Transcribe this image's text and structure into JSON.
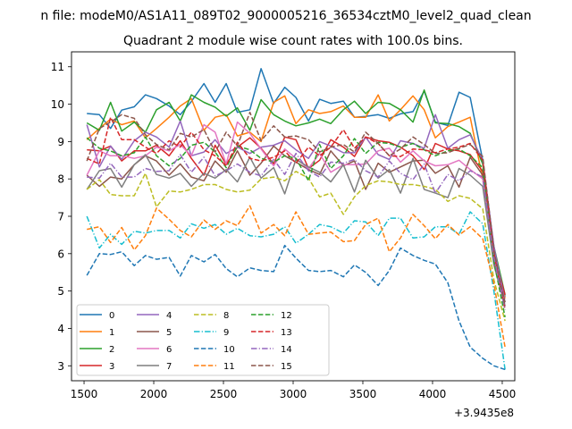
{
  "figure": {
    "suptitle": "n file: modeM0/AS1A11_089T02_9000005216_36534cztM0_level2_quad_clean",
    "title": "Quadrant 2 module wise count rates with 100.0s bins.",
    "offset_label": "+3.9435e8"
  },
  "chart_data": {
    "type": "line",
    "title": "Quadrant 2 module wise count rates with 100.0s bins.",
    "x_offset": "+3.9435e8",
    "xlim": [
      1410,
      4590
    ],
    "ylim": [
      2.6,
      11.4
    ],
    "x_ticks": [
      1500,
      2000,
      2500,
      3000,
      3500,
      4000,
      4500
    ],
    "y_ticks": [
      3,
      4,
      5,
      6,
      7,
      8,
      9,
      10,
      11
    ],
    "grid": false,
    "legend_position": "lower-left",
    "legend_columns": 4,
    "x": [
      1520,
      1610,
      1690,
      1770,
      1860,
      1940,
      2020,
      2110,
      2190,
      2270,
      2360,
      2440,
      2520,
      2600,
      2690,
      2770,
      2860,
      2940,
      3020,
      3110,
      3190,
      3270,
      3360,
      3440,
      3520,
      3610,
      3690,
      3770,
      3860,
      3940,
      4020,
      4110,
      4190,
      4270,
      4360,
      4440,
      4520
    ],
    "series": [
      {
        "name": "0",
        "color": "#1f77b4",
        "dash": "solid",
        "values": [
          9.75,
          9.72,
          9.35,
          9.84,
          9.93,
          10.25,
          10.15,
          9.95,
          9.72,
          10.07,
          10.55,
          10.05,
          10.55,
          9.78,
          9.85,
          10.95,
          10.02,
          10.45,
          10.18,
          9.55,
          10.13,
          10.02,
          10.08,
          9.65,
          9.67,
          9.72,
          9.62,
          9.74,
          9.8,
          10.35,
          9.52,
          9.43,
          10.32,
          10.18,
          8.5,
          6.1,
          4.85
        ]
      },
      {
        "name": "1",
        "color": "#ff7f0e",
        "dash": "solid",
        "values": [
          9.05,
          9.35,
          9.6,
          9.45,
          9.55,
          9.1,
          9.35,
          9.65,
          9.95,
          10.15,
          9.3,
          9.65,
          9.72,
          9.15,
          9.25,
          9.0,
          10.05,
          10.22,
          9.48,
          9.85,
          9.75,
          9.8,
          9.95,
          9.65,
          9.65,
          10.25,
          9.55,
          9.85,
          10.22,
          9.85,
          9.1,
          9.4,
          9.52,
          9.65,
          8.0,
          6.0,
          4.8
        ]
      },
      {
        "name": "2",
        "color": "#2ca02c",
        "dash": "solid",
        "values": [
          9.5,
          9.3,
          10.05,
          9.28,
          9.52,
          9.25,
          9.85,
          10.05,
          9.55,
          10.25,
          10.05,
          9.92,
          9.68,
          9.9,
          9.3,
          10.12,
          9.72,
          9.55,
          9.42,
          9.5,
          9.6,
          9.48,
          9.85,
          10.08,
          9.75,
          10.05,
          10.02,
          9.85,
          9.52,
          10.38,
          9.5,
          9.48,
          9.4,
          9.22,
          8.4,
          6.2,
          4.9
        ]
      },
      {
        "name": "3",
        "color": "#d62728",
        "dash": "solid",
        "values": [
          8.78,
          8.75,
          8.88,
          8.48,
          8.75,
          8.75,
          8.9,
          8.62,
          9.02,
          8.55,
          8.1,
          8.9,
          8.38,
          8.85,
          9.1,
          8.82,
          8.4,
          9.12,
          9.05,
          8.28,
          8.5,
          9.05,
          8.85,
          8.6,
          9.12,
          9.02,
          8.98,
          8.85,
          8.62,
          8.25,
          8.95,
          8.8,
          8.75,
          8.65,
          8.2,
          6.0,
          4.9
        ]
      },
      {
        "name": "4",
        "color": "#9467bd",
        "dash": "solid",
        "values": [
          9.45,
          8.32,
          8.88,
          8.52,
          9.02,
          9.25,
          9.12,
          8.85,
          9.55,
          8.62,
          8.72,
          9.05,
          8.68,
          8.85,
          8.68,
          8.85,
          8.9,
          9.02,
          8.78,
          8.55,
          9.0,
          8.88,
          8.7,
          8.7,
          9.12,
          8.65,
          8.52,
          9.02,
          8.95,
          8.82,
          9.72,
          8.82,
          9.05,
          9.18,
          8.5,
          6.2,
          4.7
        ]
      },
      {
        "name": "5",
        "color": "#8c564b",
        "dash": "solid",
        "values": [
          8.1,
          7.8,
          8.05,
          8.0,
          8.38,
          8.62,
          8.48,
          8.1,
          8.4,
          8.05,
          7.95,
          8.48,
          8.18,
          8.75,
          8.1,
          8.42,
          8.88,
          8.62,
          8.45,
          8.25,
          8.12,
          8.75,
          8.35,
          8.48,
          7.72,
          8.42,
          8.18,
          8.32,
          8.48,
          8.5,
          8.15,
          8.35,
          7.78,
          8.58,
          8.1,
          5.8,
          4.7
        ]
      },
      {
        "name": "6",
        "color": "#e377c2",
        "dash": "solid",
        "values": [
          8.1,
          8.75,
          8.62,
          8.62,
          8.55,
          8.62,
          8.85,
          8.75,
          8.92,
          8.62,
          9.45,
          9.25,
          8.4,
          9.52,
          9.22,
          8.8,
          8.35,
          8.8,
          8.55,
          8.28,
          8.68,
          8.18,
          8.38,
          8.38,
          8.4,
          8.75,
          8.82,
          8.45,
          8.75,
          8.48,
          8.35,
          8.38,
          8.5,
          8.25,
          8.0,
          5.9,
          4.6
        ]
      },
      {
        "name": "7",
        "color": "#7f7f7f",
        "dash": "solid",
        "values": [
          7.72,
          8.22,
          8.28,
          7.78,
          8.38,
          8.65,
          8.12,
          8.02,
          8.15,
          7.8,
          8.15,
          8.02,
          8.25,
          7.92,
          8.58,
          8.02,
          8.3,
          7.6,
          8.52,
          8.32,
          8.18,
          7.92,
          8.38,
          7.65,
          8.5,
          8.02,
          8.25,
          7.62,
          8.55,
          7.72,
          7.62,
          7.5,
          8.28,
          8.1,
          7.8,
          5.7,
          4.6
        ]
      },
      {
        "name": "8",
        "color": "#bcbd22",
        "dash": "dashed",
        "values": [
          7.72,
          7.98,
          7.58,
          7.55,
          7.55,
          8.15,
          7.25,
          7.68,
          7.65,
          7.72,
          7.85,
          7.85,
          7.72,
          7.65,
          7.7,
          8.0,
          8.05,
          7.95,
          8.2,
          8.02,
          7.52,
          7.62,
          7.05,
          7.52,
          7.82,
          7.95,
          7.92,
          7.85,
          7.85,
          7.8,
          7.72,
          7.4,
          7.55,
          7.48,
          7.2,
          5.3,
          4.2
        ]
      },
      {
        "name": "9",
        "color": "#17becf",
        "dash": "dashdot",
        "values": [
          7.0,
          6.15,
          6.52,
          6.25,
          6.6,
          6.55,
          6.62,
          6.62,
          6.42,
          6.8,
          6.68,
          6.78,
          6.52,
          6.68,
          6.48,
          6.45,
          6.52,
          6.72,
          6.28,
          6.52,
          6.78,
          6.72,
          6.55,
          6.88,
          6.85,
          6.48,
          6.95,
          6.95,
          6.42,
          6.45,
          6.72,
          6.72,
          6.52,
          7.12,
          6.8,
          5.0,
          2.9
        ]
      },
      {
        "name": "10",
        "color": "#1f77b4",
        "dash": "dashed",
        "values": [
          5.42,
          6.0,
          5.98,
          6.05,
          5.68,
          5.95,
          5.85,
          5.9,
          5.4,
          5.95,
          5.78,
          5.98,
          5.6,
          5.38,
          5.62,
          5.55,
          5.52,
          6.22,
          5.88,
          5.55,
          5.52,
          5.55,
          5.38,
          5.7,
          5.5,
          5.15,
          5.55,
          6.15,
          5.95,
          5.82,
          5.72,
          5.22,
          4.2,
          3.5,
          3.2,
          3.0,
          2.9
        ]
      },
      {
        "name": "11",
        "color": "#ff7f0e",
        "dash": "dashed",
        "values": [
          6.65,
          6.72,
          6.3,
          6.7,
          6.1,
          6.48,
          7.22,
          6.92,
          6.62,
          6.45,
          6.9,
          6.65,
          6.88,
          6.75,
          7.28,
          6.55,
          6.78,
          6.48,
          7.12,
          6.52,
          6.55,
          6.58,
          6.32,
          6.35,
          6.78,
          6.95,
          6.05,
          6.42,
          7.05,
          6.75,
          6.4,
          6.78,
          6.5,
          6.72,
          6.4,
          5.2,
          3.5
        ]
      },
      {
        "name": "12",
        "color": "#2ca02c",
        "dash": "dashed",
        "values": [
          9.1,
          8.82,
          8.75,
          8.62,
          8.7,
          9.12,
          8.62,
          8.35,
          8.55,
          8.9,
          8.98,
          8.72,
          8.3,
          8.88,
          8.78,
          8.55,
          8.45,
          8.62,
          8.55,
          7.95,
          8.92,
          8.28,
          8.62,
          9.08,
          8.68,
          8.98,
          8.95,
          8.85,
          8.95,
          8.78,
          8.62,
          8.75,
          8.8,
          8.62,
          8.3,
          5.8,
          4.3
        ]
      },
      {
        "name": "13",
        "color": "#d62728",
        "dash": "dashed",
        "values": [
          8.55,
          8.4,
          9.65,
          9.05,
          9.05,
          8.85,
          8.68,
          9.02,
          8.85,
          9.25,
          8.78,
          8.62,
          8.35,
          8.98,
          8.55,
          8.48,
          8.58,
          8.75,
          8.42,
          8.85,
          8.62,
          8.85,
          9.32,
          8.82,
          9.12,
          8.95,
          8.62,
          8.6,
          8.8,
          8.78,
          8.7,
          8.8,
          8.85,
          8.95,
          8.5,
          6.0,
          4.5
        ]
      },
      {
        "name": "14",
        "color": "#9467bd",
        "dash": "dashdot",
        "values": [
          8.05,
          8.02,
          8.42,
          8.05,
          8.05,
          8.28,
          8.2,
          8.22,
          8.65,
          8.18,
          8.58,
          8.08,
          8.22,
          8.4,
          8.18,
          8.08,
          8.52,
          8.12,
          8.68,
          8.22,
          8.05,
          8.45,
          8.42,
          8.52,
          8.22,
          8.05,
          8.48,
          8.15,
          7.98,
          8.4,
          7.62,
          8.12,
          7.95,
          8.22,
          8.05,
          5.9,
          4.5
        ]
      },
      {
        "name": "15",
        "color": "#8c564b",
        "dash": "dashed",
        "values": [
          8.48,
          9.35,
          9.52,
          9.72,
          9.62,
          9.18,
          8.92,
          8.78,
          9.22,
          9.12,
          9.32,
          8.72,
          9.25,
          8.88,
          9.78,
          9.02,
          9.42,
          9.12,
          9.15,
          9.05,
          8.72,
          8.85,
          8.92,
          8.72,
          9.25,
          8.95,
          8.62,
          8.8,
          9.12,
          8.92,
          8.68,
          8.7,
          8.82,
          8.92,
          8.6,
          6.1,
          4.6
        ]
      }
    ]
  }
}
